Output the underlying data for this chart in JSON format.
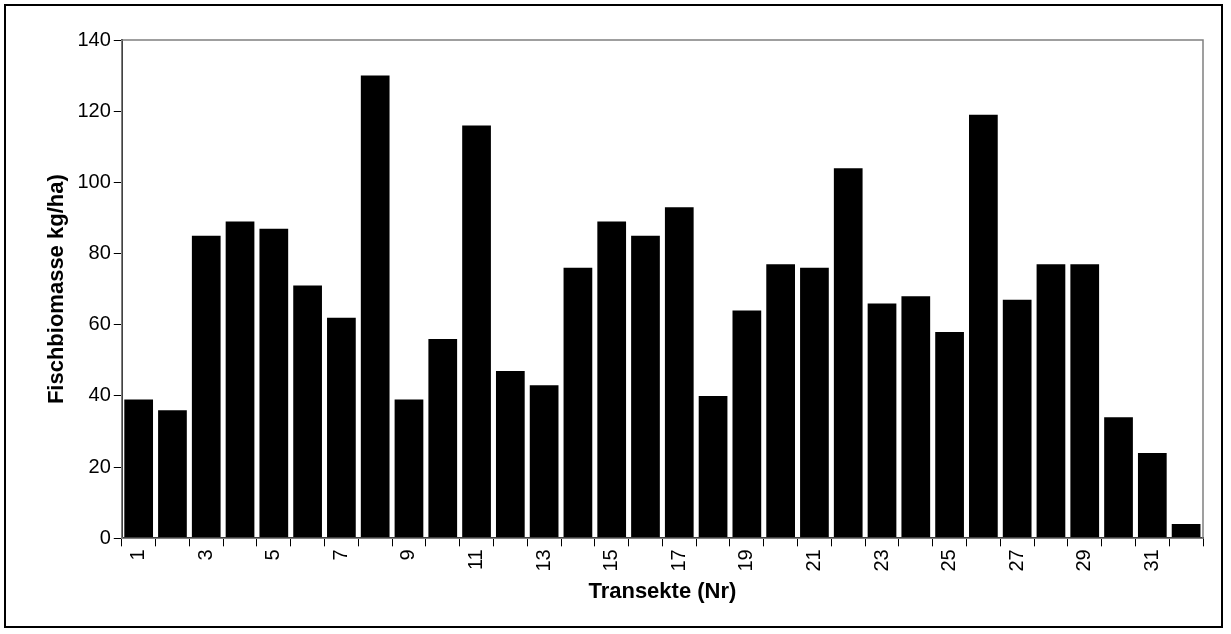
{
  "chart_data": {
    "type": "bar",
    "xlabel": "Transekte (Nr)",
    "ylabel": "Fischbiomasse kg/ha)",
    "categories": [
      "1",
      null,
      "3",
      null,
      "5",
      null,
      "7",
      null,
      "9",
      null,
      "11",
      null,
      "13",
      null,
      "15",
      null,
      "17",
      null,
      "19",
      null,
      "21",
      null,
      "23",
      null,
      "25",
      null,
      "27",
      null,
      "29",
      null,
      "31",
      null
    ],
    "values": [
      39,
      36,
      85,
      89,
      87,
      71,
      62,
      130,
      39,
      56,
      116,
      47,
      43,
      76,
      89,
      85,
      93,
      40,
      64,
      77,
      76,
      104,
      66,
      68,
      58,
      119,
      67,
      77,
      77,
      34,
      24,
      4
    ],
    "color": "#000000",
    "ylim": [
      0,
      140
    ],
    "yticks": [
      0,
      20,
      40,
      60,
      80,
      100,
      120,
      140
    ],
    "grid": false,
    "legend": false
  }
}
